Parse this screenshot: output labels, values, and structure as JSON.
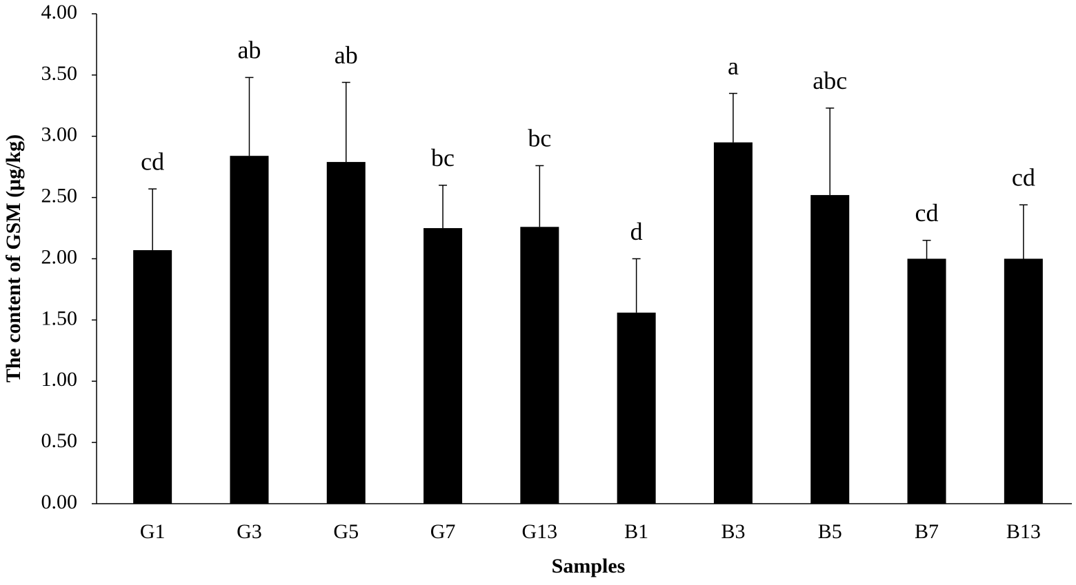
{
  "chart_data": {
    "type": "bar",
    "x_label": "Samples",
    "y_label": "The content of GSM (μg/kg)",
    "categories": [
      "G1",
      "G3",
      "G5",
      "G7",
      "G13",
      "B1",
      "B3",
      "B5",
      "B7",
      "B13"
    ],
    "values": [
      2.07,
      2.84,
      2.79,
      2.25,
      2.26,
      1.56,
      2.95,
      2.52,
      2.0,
      2.0
    ],
    "errors": [
      0.5,
      0.64,
      0.65,
      0.35,
      0.5,
      0.44,
      0.4,
      0.71,
      0.15,
      0.44
    ],
    "value_labels": [
      "cd",
      "ab",
      "ab",
      "bc",
      "bc",
      "d",
      "a",
      "abc",
      "cd",
      "cd"
    ],
    "color": "#000000",
    "ylim": [
      0,
      4
    ],
    "yticks": [
      {
        "value": 0,
        "label": "0.00"
      },
      {
        "value": 0.5,
        "label": "0.50"
      },
      {
        "value": 1,
        "label": "1.00"
      },
      {
        "value": 1.5,
        "label": "1.50"
      },
      {
        "value": 2,
        "label": "2.00"
      },
      {
        "value": 2.5,
        "label": "2.50"
      },
      {
        "value": 3,
        "label": "3.00"
      },
      {
        "value": 3.5,
        "label": "3.50"
      },
      {
        "value": 4,
        "label": "4.00"
      }
    ],
    "grid": false
  }
}
